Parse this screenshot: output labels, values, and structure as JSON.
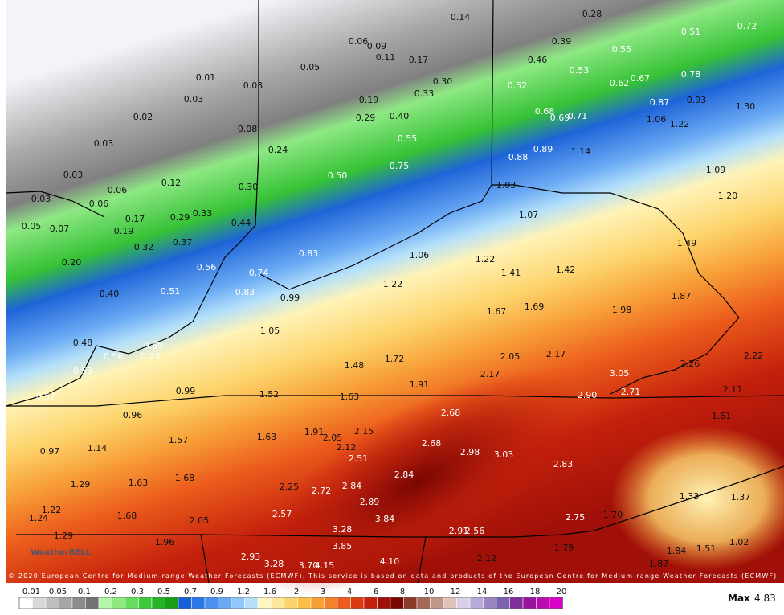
{
  "labels": [
    "0.14",
    "0.28",
    "0.72",
    "0.51",
    "0.39",
    "0.55",
    "0.06",
    "0.09",
    "0.11",
    "0.17",
    "0.05",
    "0.46",
    "0.53",
    "0.78",
    "0.01",
    "0.03",
    "0.30",
    "0.52",
    "0.62",
    "0.67",
    "0.33",
    "0.03",
    "0.19",
    "0.87",
    "0.93",
    "1.30",
    "0.02",
    "0.68",
    "0.69",
    "0.71",
    "0.40",
    "0.29",
    "1.06",
    "1.22",
    "0.08",
    "0.03",
    "0.55",
    "0.24",
    "0.89",
    "1.14",
    "0.88",
    "0.03",
    "0.75",
    "0.50",
    "1.09",
    "0.12",
    "0.06",
    "0.30",
    "1.03",
    "0.03",
    "0.06",
    "1.20",
    "0.33",
    "0.29",
    "0.17",
    "1.07",
    "0.05",
    "0.07",
    "0.44",
    "0.19",
    "0.37",
    "1.49",
    "0.32",
    "0.83",
    "1.06",
    "1.22",
    "0.20",
    "0.56",
    "0.74",
    "1.41",
    "1.42",
    "1.22",
    "0.83",
    "0.51",
    "0.40",
    "0.99",
    "1.87",
    "1.67",
    "1.69",
    "1.98",
    "1.05",
    "0.48",
    "0.69",
    "0.56",
    "0.73",
    "2.05",
    "2.17",
    "2.22",
    "1.72",
    "1.48",
    "2.26",
    "0.53",
    "3.05",
    "2.17",
    "1.91",
    "0.99",
    "2.11",
    "0.57",
    "1.52",
    "1.63",
    "2.90",
    "2.71",
    "2.68",
    "0.96",
    "1.61",
    "1.91",
    "2.05",
    "2.15",
    "1.63",
    "1.57",
    "2.68",
    "1.14",
    "0.97",
    "2.12",
    "2.98",
    "3.03",
    "2.51",
    "2.83",
    "2.84",
    "1.68",
    "1.63",
    "1.29",
    "2.84",
    "2.25",
    "2.72",
    "1.33",
    "1.37",
    "2.89",
    "2.57",
    "1.22",
    "1.24",
    "1.68",
    "1.70",
    "2.75",
    "2.05",
    "3.84",
    "3.28",
    "2.91",
    "2.56",
    "1.29",
    "1.96",
    "3.85",
    "1.79",
    "1.02",
    "1.84",
    "1.51",
    "2.93",
    "3.28",
    "3.70",
    "4.15",
    "4.10",
    "2.12",
    "1.87"
  ],
  "legend": {
    "ticks": [
      "0.01",
      "0.05",
      "0.1",
      "0.2",
      "0.3",
      "0.5",
      "0.7",
      "0.9",
      "1.2",
      "1.6",
      "2",
      "3",
      "4",
      "6",
      "8",
      "10",
      "12",
      "14",
      "16",
      "18",
      "20"
    ],
    "colors": [
      "#ffffff",
      "#d9d9d9",
      "#bfbfbf",
      "#a6a6a6",
      "#8c8c8c",
      "#737373",
      "#b4f5a8",
      "#8eea80",
      "#64dc5c",
      "#3ec93a",
      "#26b426",
      "#1a9e1a",
      "#1560d8",
      "#2a78e6",
      "#4a90ee",
      "#6aaaf4",
      "#90c6f8",
      "#b4e0fa",
      "#fff6c0",
      "#fde79a",
      "#fdd46c",
      "#fcc048",
      "#f8a038",
      "#f38228",
      "#ec5c1c",
      "#dc3a12",
      "#c4200c",
      "#a01008",
      "#7a0604",
      "#8a3a28",
      "#a46a58",
      "#c0968a",
      "#e0c4bc",
      "#d8d0e8",
      "#b8aad6",
      "#9886c2",
      "#7a62ae",
      "#7e2e9a",
      "#98149c",
      "#b80cb0",
      "#d800c8"
    ]
  },
  "max": {
    "label": "Max",
    "value": "4.83"
  },
  "copyright": "© 2020 European Centre for Medium-range Weather Forecasts (ECMWF). This service is based on data and products of the European Centre for Medium-range Weather Forecasts (ECMWF).",
  "logo": "WeatherBELL"
}
